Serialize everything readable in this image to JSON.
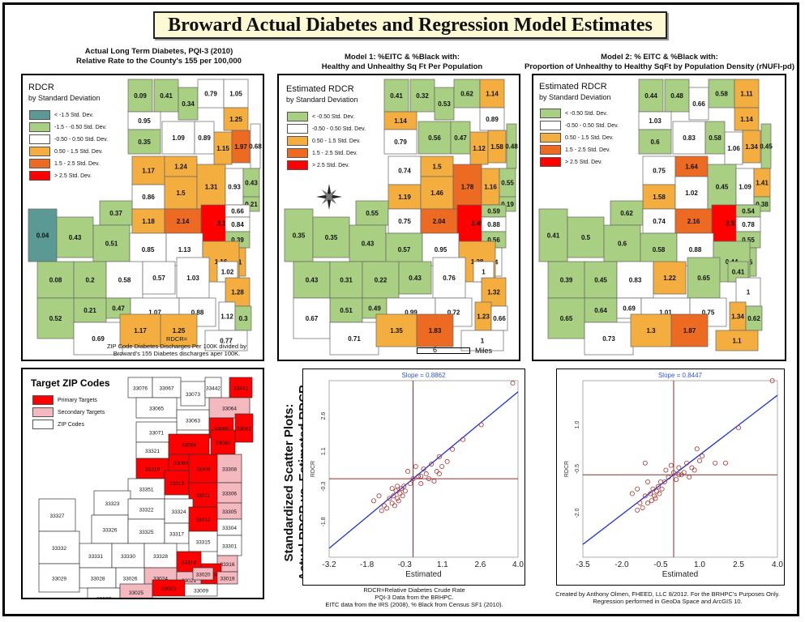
{
  "title": "Broward Actual Diabetes and Regression Model Estimates",
  "headers": {
    "h1_line1": "Actual Long Term Diabetes, PQI-3 (2010)",
    "h1_line2": "Relative Rate to the County's 155 per 100,000",
    "h2_line1": "Model 1: %EITC & %Black with:",
    "h2_line2": "Healthy and Unhealthy Sq Ft Per Population",
    "h3_line1": "Model 2: % EITC & %Black with:",
    "h3_line2": "Proportion of Unhealthy to Healthy SqFt by Population Density (rNUFI-pd)"
  },
  "colors": {
    "lt_m15": "#5b9a94",
    "m15_m05": "#a9cf82",
    "m05_05": "#ffffff",
    "p05_15": "#f4ae3f",
    "p15_25": "#ec6a22",
    "gt25": "#ff0000",
    "primary": "#ff0000",
    "secondary": "#f4b8bf",
    "zip": "#ffffff",
    "scatter_line": "#2233dd",
    "scatter_pt": "#aa3333"
  },
  "map1": {
    "legend_title1": "RDCR",
    "legend_title2": "by Standard Deviation",
    "legend": [
      "< -1.5 Std. Dev.",
      "-1.5 - -0.50 Std. Dev.",
      "-0.50 - 0.50 Std. Dev.",
      "0.50 - 1.5 Std. Dev.",
      "1.5 - 2.5 Std. Dev.",
      "> 2.5 Std. Dev."
    ],
    "note_line1": "RDCR=",
    "note_line2": "ZIP Code Diabetes Discharges Per 100K divided by",
    "note_line3": "Broward's 155 Diabetes discharges aper 100K.",
    "values": [
      "0.09",
      "0.41",
      "0.34",
      "0.79",
      "1.05",
      "1.25",
      "0.95",
      "0.35",
      "1.09",
      "0.89",
      "1.15",
      "1.97",
      "0.68",
      "1.17",
      "1.24",
      "0.86",
      "1.5",
      "1.31",
      "0.93",
      "0.43",
      "0.21",
      "0.37",
      "1.18",
      "2.14",
      "3.1",
      "0.66",
      "0.84",
      "0.04",
      "0.43",
      "0.51",
      "0.85",
      "1.13",
      "0.39",
      "1.31",
      "1.16",
      "1.02",
      "0.08",
      "0.2",
      "0.58",
      "0.57",
      "1.03",
      "1.28",
      "0.21",
      "0.47",
      "1.07",
      "0.88",
      "1.12",
      "0.3",
      "0.52",
      "0.69",
      "1.17",
      "1.25",
      "0.77"
    ]
  },
  "map2": {
    "legend_title1": "Estimated RDCR",
    "legend_title2": "by Standard Deviation",
    "legend": [
      "< -0.50 Std. Dev.",
      "-0.50 - 0.50 Std. Dev.",
      "0.50 - 1.5 Std. Dev.",
      "1.5 - 2.5 Std. Dev.",
      "> 2.5 Std. Dev."
    ],
    "scale_value": "6",
    "scale_unit": "Miles",
    "values": [
      "0.41",
      "0.32",
      "0.53",
      "0.62",
      "1.14",
      "0.89",
      "1.14",
      "0.79",
      "0.56",
      "0.47",
      "1.12",
      "1.58",
      "0.48",
      "0.74",
      "1.5",
      "1.19",
      "1.46",
      "1.78",
      "1.16",
      "0.55",
      "0.19",
      "0.55",
      "0.75",
      "2.04",
      "2.45",
      "0.59",
      "0.88",
      "0.35",
      "0.35",
      "0.43",
      "0.57",
      "0.95",
      "0.56",
      "0.94",
      "1.28",
      "1",
      "0.43",
      "0.31",
      "0.22",
      "0.43",
      "0.76",
      "1.32",
      "0.51",
      "0.49",
      "0.99",
      "0.72",
      "1.23",
      "0.66",
      "0.67",
      "0.71",
      "1.35",
      "1.83",
      "1"
    ]
  },
  "map3": {
    "legend_title1": "Estimated RDCR",
    "legend_title2": "by Standard Deviation",
    "legend": [
      "< -0.50 Std. Dev.",
      "-0.50 - 0.50 Std. Dev.",
      "0.50 - 1.5 Std. Dev.",
      "1.5 - 2.5 Std. Dev.",
      "> 2.5 Std. Dev."
    ],
    "values": [
      "0.44",
      "0.48",
      "0.66",
      "0.58",
      "1.11",
      "1.14",
      "1.03",
      "0.6",
      "0.83",
      "0.58",
      "1.06",
      "1.34",
      "0.45",
      "0.75",
      "1.64",
      "1.58",
      "1.02",
      "0.45",
      "1.09",
      "1.41",
      "0.38",
      "0.62",
      "0.74",
      "2.16",
      "2.51",
      "0.54",
      "0.78",
      "0.41",
      "0.5",
      "0.6",
      "0.58",
      "0.88",
      "0.55",
      "0.45",
      "0.44",
      "0.41",
      "0.39",
      "0.45",
      "0.83",
      "1.22",
      "0.65",
      "1",
      "0.64",
      "0.69",
      "1.01",
      "0.75",
      "1.34",
      "0.62",
      "0.65",
      "0.73",
      "1.3",
      "1.87",
      "1.1"
    ]
  },
  "targets": {
    "title": "Target ZIP Codes",
    "legend": [
      "Primary Targets",
      "Secondary Targets",
      "ZIP Codes"
    ],
    "zips": [
      "33076",
      "33067",
      "33073",
      "33442",
      "33441",
      "33065",
      "33064",
      "33063",
      "33066",
      "33062",
      "33071",
      "33060",
      "33321",
      "33068",
      "33069",
      "33319",
      "33309",
      "33308",
      "33351",
      "33313",
      "33311",
      "33306",
      "33305",
      "33323",
      "33322",
      "33304",
      "33326",
      "33325",
      "33324",
      "33317",
      "33312",
      "33301",
      "33316",
      "33327",
      "33315",
      "33332",
      "33331",
      "33330",
      "33328",
      "33314",
      "33004",
      "33024",
      "33021",
      "33019",
      "33020",
      "33028",
      "33026",
      "33029",
      "33027",
      "33025",
      "33023",
      "33009"
    ]
  },
  "scatter_title_line1": "Standardized Scatter Plots:",
  "scatter_title_line2": "Actual RDCR vs. Estimated RDCR",
  "chart_data": [
    {
      "type": "scatter",
      "title": "Slope = 0.8862",
      "xlabel": "Estimated",
      "ylabel": "RDCR",
      "xticks": [
        "-3.2",
        "-1.8",
        "-0.3",
        "1.1",
        "2.6",
        "4.0"
      ],
      "yticks": [
        "2.6",
        "1.1",
        "-0.3",
        "-1.8"
      ],
      "xlim": [
        -3.2,
        4.0
      ],
      "ylim": [
        -3.2,
        4.0
      ],
      "slope": 0.8862,
      "points": [
        [
          -1.2,
          -1.3
        ],
        [
          -1.1,
          -1.1
        ],
        [
          -1.0,
          -1.2
        ],
        [
          -0.9,
          -0.8
        ],
        [
          -0.8,
          -1.0
        ],
        [
          -0.75,
          -0.7
        ],
        [
          -0.7,
          -1.1
        ],
        [
          -0.65,
          -0.5
        ],
        [
          -0.6,
          -0.8
        ],
        [
          -0.55,
          -0.9
        ],
        [
          -0.5,
          -0.6
        ],
        [
          -0.45,
          -0.4
        ],
        [
          -0.4,
          -0.7
        ],
        [
          -0.35,
          -0.3
        ],
        [
          -0.3,
          -0.5
        ],
        [
          -0.6,
          -0.3
        ],
        [
          -1.3,
          -0.7
        ],
        [
          -0.2,
          0.3
        ],
        [
          0.1,
          0.5
        ],
        [
          0.2,
          0.1
        ],
        [
          0.3,
          -0.2
        ],
        [
          0.4,
          0.4
        ],
        [
          0.5,
          0.2
        ],
        [
          0.6,
          0.0
        ],
        [
          0.7,
          0.6
        ],
        [
          0.8,
          -0.1
        ],
        [
          0.9,
          0.3
        ],
        [
          1.0,
          0.2
        ],
        [
          1.1,
          0.5
        ],
        [
          1.3,
          0.7
        ],
        [
          1.5,
          1.2
        ],
        [
          1.9,
          1.6
        ],
        [
          2.6,
          2.2
        ],
        [
          3.8,
          3.9
        ],
        [
          0.0,
          0.0
        ],
        [
          -0.1,
          -0.2
        ],
        [
          0.3,
          0.1
        ],
        [
          -0.8,
          -0.4
        ],
        [
          -1.5,
          -0.9
        ],
        [
          1.0,
          0.9
        ]
      ]
    },
    {
      "type": "scatter",
      "title": "Slope = 0.8447",
      "xlabel": "Estimated",
      "ylabel": "RDCR",
      "xticks": [
        "-3.5",
        "-2.0",
        "-0.5",
        "1.0",
        "2.5",
        "4.0"
      ],
      "yticks": [
        "1.0",
        "-0.5",
        "-2.0"
      ],
      "xlim": [
        -3.5,
        4.0
      ],
      "ylim": [
        -3.5,
        4.0
      ],
      "slope": 0.8447,
      "points": [
        [
          -1.4,
          -1.5
        ],
        [
          -1.3,
          -1.2
        ],
        [
          -1.2,
          -1.4
        ],
        [
          -1.1,
          -0.9
        ],
        [
          -1.0,
          -1.2
        ],
        [
          -0.9,
          -0.8
        ],
        [
          -0.85,
          -1.1
        ],
        [
          -0.8,
          -0.6
        ],
        [
          -0.75,
          -0.9
        ],
        [
          -0.7,
          -1.0
        ],
        [
          -0.65,
          -0.7
        ],
        [
          -0.6,
          -0.5
        ],
        [
          -0.55,
          -0.8
        ],
        [
          -0.5,
          -0.3
        ],
        [
          -0.45,
          -0.6
        ],
        [
          -1.0,
          -0.3
        ],
        [
          -1.4,
          -0.6
        ],
        [
          -0.3,
          0.2
        ],
        [
          -0.1,
          0.4
        ],
        [
          0.0,
          0.1
        ],
        [
          0.1,
          -0.2
        ],
        [
          0.2,
          0.3
        ],
        [
          0.3,
          0.0
        ],
        [
          0.4,
          0.1
        ],
        [
          0.5,
          0.5
        ],
        [
          0.6,
          -0.1
        ],
        [
          0.7,
          0.3
        ],
        [
          0.8,
          0.2
        ],
        [
          1.0,
          0.6
        ],
        [
          1.1,
          0.8
        ],
        [
          1.6,
          0.5
        ],
        [
          2.0,
          0.5
        ],
        [
          2.5,
          2.0
        ],
        [
          3.8,
          4.0
        ],
        [
          -0.2,
          -0.1
        ],
        [
          -0.35,
          -0.3
        ],
        [
          0.2,
          0.0
        ],
        [
          -1.6,
          -0.8
        ],
        [
          -1.1,
          0.5
        ],
        [
          0.9,
          1.1
        ]
      ]
    }
  ],
  "footer": {
    "left1": "RDCR=Relative Diabetes Crude Rate",
    "left2": "PQI-3 Data from the BRHPC.",
    "left3": "EITC data from the IRS (2008), % Black from Census SF1 (2010).",
    "right1": "Created by Anthony Olmen, FHEED, LLC 8/2012. For the BRHPC's Purposes Only.",
    "right2": "Regression performed in GeoDa Space and ArcGIS 10."
  }
}
